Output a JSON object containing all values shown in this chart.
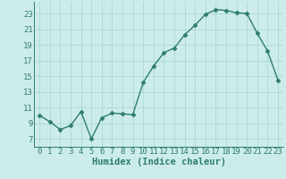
{
  "x": [
    0,
    1,
    2,
    3,
    4,
    5,
    6,
    7,
    8,
    9,
    10,
    11,
    12,
    13,
    14,
    15,
    16,
    17,
    18,
    19,
    20,
    21,
    22,
    23
  ],
  "y": [
    10.0,
    9.2,
    8.2,
    8.7,
    10.5,
    7.0,
    9.7,
    10.3,
    10.2,
    10.1,
    14.2,
    16.3,
    18.0,
    18.6,
    20.3,
    21.5,
    22.9,
    23.5,
    23.4,
    23.1,
    23.0,
    20.5,
    18.2,
    14.5
  ],
  "xlabel": "Humidex (Indice chaleur)",
  "line_color": "#2e7d6e",
  "marker": "D",
  "marker_size": 2.5,
  "bg_color": "#ccecea",
  "grid_color": "#aad8d4",
  "xlim": [
    -0.5,
    23.5
  ],
  "ylim": [
    6.0,
    24.5
  ],
  "xticks": [
    0,
    1,
    2,
    3,
    4,
    5,
    6,
    7,
    8,
    9,
    10,
    11,
    12,
    13,
    14,
    15,
    16,
    17,
    18,
    19,
    20,
    21,
    22,
    23
  ],
  "yticks": [
    7,
    9,
    11,
    13,
    15,
    17,
    19,
    21,
    23
  ],
  "xlabel_fontsize": 7.5,
  "tick_fontsize": 6.5,
  "linewidth": 1.0
}
